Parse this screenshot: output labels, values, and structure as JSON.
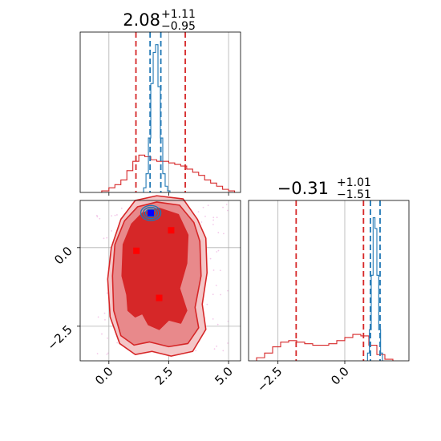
{
  "figure": {
    "panel_a_title": {
      "value": "2.08",
      "sup": "+1.11",
      "sub": "−0.95"
    },
    "panel_d_title": {
      "value": "−0.31",
      "sup": "+1.01",
      "sub": "−1.51"
    }
  },
  "colors": {
    "wide_hist": "#d62728",
    "narrow_hist": "#1f77b4",
    "contour_dark": "#d62728",
    "contour_mid": "#e8898b",
    "contour_light": "#f4c6c7",
    "marker_blue": "#0000ff",
    "marker_red": "#ff0000",
    "grid": "#b0b0b0",
    "scatter": "#f3c8e9"
  },
  "chart_data": [
    {
      "type": "histogram",
      "panel": "top-left",
      "parameter_axis": "x",
      "xlim": [
        -1.2,
        5.5
      ],
      "xticks": [
        0.0,
        2.5,
        5.0
      ],
      "title": "2.08^{+1.11}_{−0.95}",
      "grid": true,
      "series": [
        {
          "color": "wide",
          "style": "step",
          "bins": [
            -0.3,
            0.0,
            0.25,
            0.5,
            0.75,
            1.0,
            1.25,
            1.5,
            1.75,
            2.0,
            2.25,
            2.5,
            2.75,
            3.0,
            3.25,
            3.5,
            3.75,
            4.0,
            4.25,
            4.5,
            4.75,
            5.0,
            5.25
          ],
          "counts": [
            0.01,
            0.03,
            0.05,
            0.08,
            0.14,
            0.2,
            0.24,
            0.23,
            0.21,
            0.2,
            0.2,
            0.19,
            0.18,
            0.17,
            0.15,
            0.13,
            0.11,
            0.08,
            0.06,
            0.04,
            0.02,
            0.01
          ]
        },
        {
          "color": "narrow",
          "style": "step",
          "bins": [
            1.45,
            1.55,
            1.65,
            1.75,
            1.85,
            1.95,
            2.05,
            2.15,
            2.25,
            2.35,
            2.45,
            2.55
          ],
          "counts": [
            0.03,
            0.12,
            0.35,
            0.7,
            0.9,
            0.95,
            0.68,
            0.35,
            0.12,
            0.04,
            0.01
          ]
        }
      ],
      "vlines": [
        {
          "x": 1.13,
          "color": "wide"
        },
        {
          "x": 3.19,
          "color": "wide"
        },
        {
          "x": 1.72,
          "color": "narrow"
        },
        {
          "x": 2.17,
          "color": "narrow"
        }
      ]
    },
    {
      "type": "contour",
      "panel": "bottom-left",
      "xlim": [
        -1.2,
        5.5
      ],
      "ylim": [
        -3.6,
        1.5
      ],
      "xticks": [
        0.0,
        2.5,
        5.0
      ],
      "yticks": [
        0.0,
        -2.5
      ],
      "grid": true,
      "levels": [
        {
          "level": "outer",
          "polygon": [
            [
              0.1,
              0.0
            ],
            [
              0.5,
              0.9
            ],
            [
              1.1,
              1.5
            ],
            [
              2.0,
              1.65
            ],
            [
              3.1,
              1.55
            ],
            [
              3.7,
              0.9
            ],
            [
              4.05,
              0.3
            ],
            [
              4.1,
              -0.8
            ],
            [
              3.9,
              -1.8
            ],
            [
              4.05,
              -2.6
            ],
            [
              3.5,
              -3.3
            ],
            [
              2.6,
              -3.45
            ],
            [
              1.8,
              -3.3
            ],
            [
              1.1,
              -3.4
            ],
            [
              0.45,
              -3.05
            ],
            [
              0.05,
              -2.2
            ],
            [
              -0.05,
              -1.0
            ]
          ]
        },
        {
          "level": "middle",
          "polygon": [
            [
              0.25,
              0.1
            ],
            [
              0.65,
              0.85
            ],
            [
              1.2,
              1.3
            ],
            [
              2.0,
              1.45
            ],
            [
              2.95,
              1.35
            ],
            [
              3.55,
              0.8
            ],
            [
              3.8,
              0.2
            ],
            [
              3.85,
              -0.9
            ],
            [
              3.6,
              -1.9
            ],
            [
              3.75,
              -2.55
            ],
            [
              3.3,
              -3.05
            ],
            [
              2.5,
              -3.15
            ],
            [
              1.7,
              -3.0
            ],
            [
              1.05,
              -3.1
            ],
            [
              0.5,
              -2.8
            ],
            [
              0.2,
              -2.0
            ],
            [
              0.15,
              -0.9
            ]
          ]
        },
        {
          "level": "inner",
          "polygon": [
            [
              0.6,
              0.1
            ],
            [
              0.95,
              0.75
            ],
            [
              1.4,
              1.1
            ],
            [
              2.1,
              1.25
            ],
            [
              2.9,
              1.05
            ],
            [
              3.3,
              0.4
            ],
            [
              3.25,
              -0.5
            ],
            [
              2.95,
              -1.3
            ],
            [
              3.25,
              -2.0
            ],
            [
              3.0,
              -2.4
            ],
            [
              2.5,
              -2.3
            ],
            [
              2.1,
              -2.6
            ],
            [
              1.65,
              -2.45
            ],
            [
              1.4,
              -2.1
            ],
            [
              1.1,
              -2.2
            ],
            [
              0.8,
              -2.0
            ],
            [
              0.75,
              -1.5
            ],
            [
              0.55,
              -0.9
            ]
          ]
        }
      ],
      "narrow_rings": {
        "center": [
          1.75,
          1.1
        ],
        "rx": [
          0.22,
          0.32,
          0.42
        ],
        "ry": [
          0.12,
          0.18,
          0.24
        ]
      },
      "markers": [
        {
          "x": 1.75,
          "y": 1.1,
          "color": "blue"
        },
        {
          "x": 2.6,
          "y": 0.55,
          "color": "red"
        },
        {
          "x": 1.15,
          "y": -0.1,
          "color": "red"
        },
        {
          "x": 2.1,
          "y": -1.6,
          "color": "red"
        }
      ]
    },
    {
      "type": "histogram",
      "panel": "bottom-right",
      "parameter_axis": "y",
      "xlim": [
        -3.6,
        2.4
      ],
      "xticks": [
        -2.5,
        0.0
      ],
      "title": "−0.31^{+1.01}_{−1.51}",
      "grid": true,
      "series": [
        {
          "color": "wide",
          "style": "step",
          "bins": [
            -3.3,
            -3.0,
            -2.7,
            -2.4,
            -2.1,
            -1.8,
            -1.5,
            -1.2,
            -0.9,
            -0.6,
            -0.3,
            0.0,
            0.3,
            0.6,
            0.9,
            1.2,
            1.5,
            1.8
          ],
          "counts": [
            0.02,
            0.05,
            0.09,
            0.12,
            0.13,
            0.12,
            0.11,
            0.1,
            0.1,
            0.11,
            0.13,
            0.15,
            0.17,
            0.16,
            0.1,
            0.04,
            0.01
          ]
        },
        {
          "color": "narrow",
          "style": "step",
          "bins": [
            0.85,
            0.92,
            0.99,
            1.06,
            1.13,
            1.2,
            1.27,
            1.34,
            1.41
          ],
          "counts": [
            0.05,
            0.2,
            0.55,
            0.92,
            0.85,
            0.55,
            0.2,
            0.05
          ]
        }
      ],
      "vlines": [
        {
          "x": -1.82,
          "color": "wide"
        },
        {
          "x": 0.7,
          "color": "wide"
        },
        {
          "x": 0.96,
          "color": "narrow"
        },
        {
          "x": 1.32,
          "color": "narrow"
        }
      ]
    }
  ]
}
